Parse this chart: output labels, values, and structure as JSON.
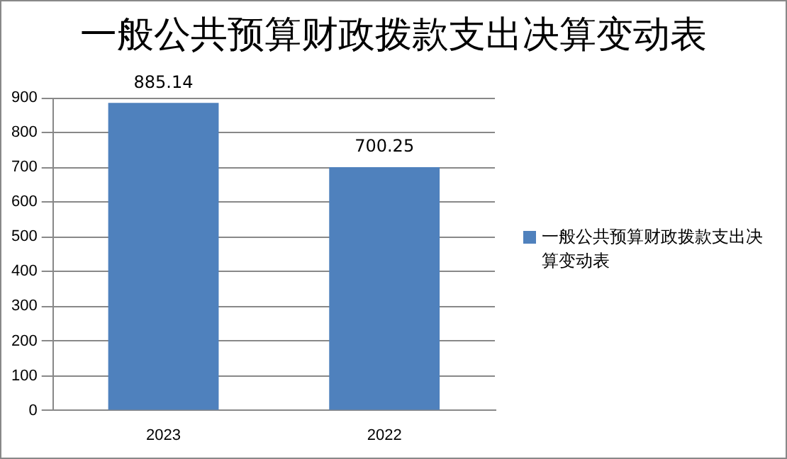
{
  "chart_data": {
    "type": "bar",
    "title": "一般公共预算财政拨款支出决算变动表",
    "categories": [
      "2023",
      "2022"
    ],
    "series": [
      {
        "name": "一般公共预算财政拨款支出决算变动表",
        "color": "#4f81bd",
        "values": [
          885.14,
          700.25
        ]
      }
    ],
    "ylim": [
      0,
      900
    ],
    "yticks": [
      0,
      100,
      200,
      300,
      400,
      500,
      600,
      700,
      800,
      900
    ],
    "grid": "y",
    "legend": "right",
    "data_labels": true
  }
}
